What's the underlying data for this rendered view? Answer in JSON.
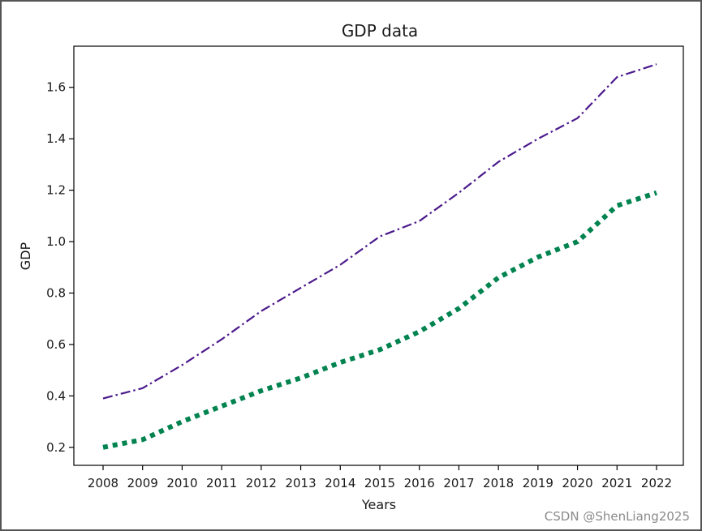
{
  "chart_data": {
    "type": "line",
    "title": "GDP data",
    "xlabel": "Years",
    "ylabel": "GDP",
    "x": [
      "2008",
      "2009",
      "2010",
      "2011",
      "2012",
      "2013",
      "2014",
      "2015",
      "2016",
      "2017",
      "2018",
      "2019",
      "2020",
      "2021",
      "2022"
    ],
    "yticks": [
      "0.2",
      "0.4",
      "0.6",
      "0.8",
      "1.0",
      "1.2",
      "1.4",
      "1.6"
    ],
    "ylim": [
      0.13,
      1.76
    ],
    "grid": false,
    "series": [
      {
        "values": [
          0.39,
          0.43,
          0.52,
          0.62,
          0.73,
          0.82,
          0.91,
          1.02,
          1.08,
          1.19,
          1.31,
          1.4,
          1.48,
          1.64,
          1.69
        ],
        "color": "#4b1a8c",
        "style": "dashdot"
      },
      {
        "values": [
          0.2,
          0.23,
          0.3,
          0.36,
          0.42,
          0.47,
          0.53,
          0.58,
          0.65,
          0.74,
          0.86,
          0.94,
          1.0,
          1.14,
          1.19
        ],
        "color": "#00834f",
        "style": "dotted"
      }
    ]
  },
  "watermark": "CSDN @ShenLiang2025"
}
